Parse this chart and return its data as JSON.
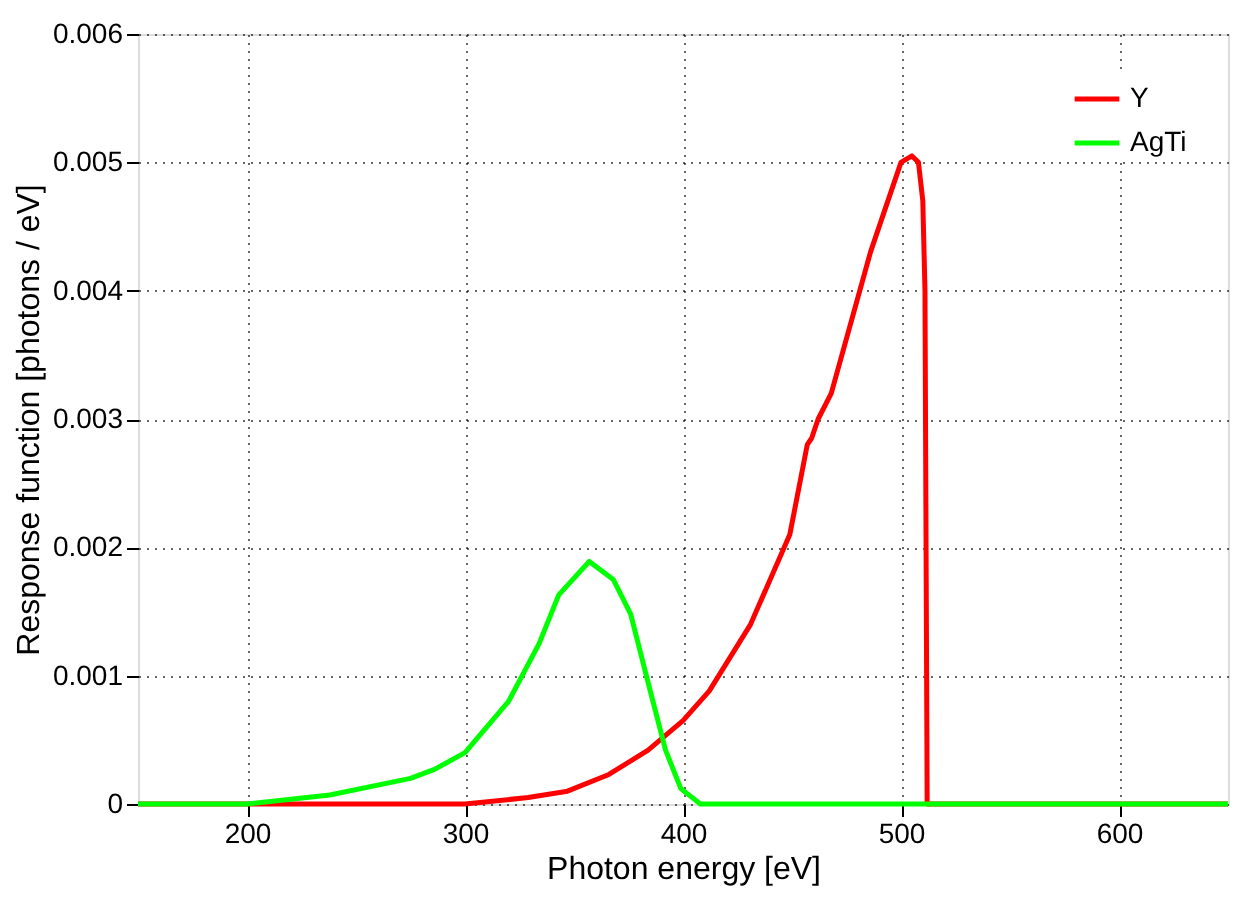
{
  "chart_data": {
    "type": "line",
    "xlabel": "Photon energy [eV]",
    "ylabel": "Response function [photons / eV]",
    "xlim": [
      150,
      650
    ],
    "xticks": [
      200,
      300,
      400,
      500,
      600
    ],
    "ylim": [
      0,
      0.006
    ],
    "yticks": [
      {
        "value": 0,
        "label": "0"
      },
      0.001,
      0.002,
      0.003,
      0.004,
      0.005,
      0.006
    ],
    "grid": true,
    "legend": "top right",
    "marker": "none",
    "line_style": "solid",
    "series": [
      {
        "name": "Y",
        "color": "#ff0000",
        "x": [
          150,
          200,
          300,
          329,
          347,
          366,
          384,
          400,
          412,
          431,
          449,
          457,
          459,
          462,
          468,
          486,
          500,
          505,
          508,
          510,
          511,
          511.5,
          512,
          530,
          650
        ],
        "values": [
          0,
          0,
          0,
          5e-05,
          0.0001,
          0.00023,
          0.00042,
          0.00065,
          0.00088,
          0.0014,
          0.0021,
          0.0028,
          0.00285,
          0.003,
          0.0032,
          0.0043,
          0.005,
          0.00505,
          0.005,
          0.0047,
          0.004,
          0.002,
          0,
          0,
          0
        ]
      },
      {
        "name": "AgTi",
        "color": "#00ff00",
        "x": [
          150,
          200,
          238,
          275,
          286,
          300,
          320,
          334,
          343,
          357,
          368,
          376,
          385,
          392,
          399,
          408,
          441,
          650
        ],
        "values": [
          0,
          0,
          7e-05,
          0.0002,
          0.00027,
          0.0004,
          0.0008,
          0.00125,
          0.00163,
          0.00189,
          0.00175,
          0.00148,
          0.00088,
          0.00042,
          0.00012,
          0,
          0,
          0
        ]
      }
    ]
  }
}
